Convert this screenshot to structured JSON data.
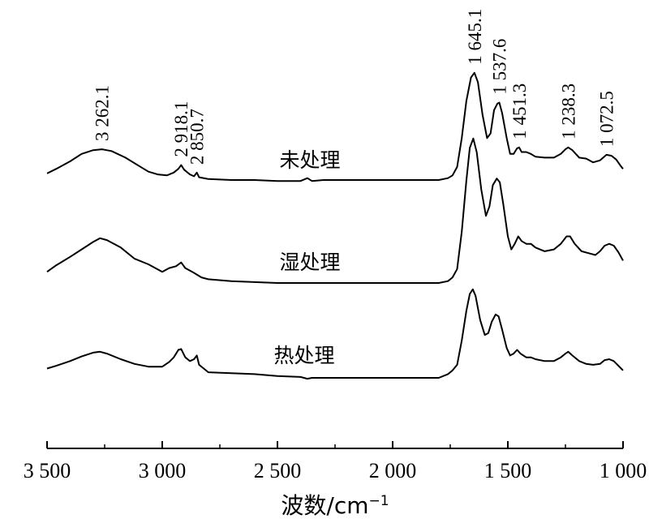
{
  "chart_data": {
    "type": "line",
    "title": "",
    "xlabel": "波数/cm",
    "xlabel_sup": "−1",
    "ylabel": "",
    "xlim": [
      3500,
      1000
    ],
    "x_reversed": true,
    "y_axis_visible": false,
    "grid": false,
    "x_ticks": [
      3500,
      3000,
      2500,
      2000,
      1500,
      1000
    ],
    "x_tick_labels": [
      "3 500",
      "3 000",
      "2 500",
      "2 000",
      "1 500",
      "1 000"
    ],
    "series": [
      {
        "name": "未处理",
        "points": [
          [
            3500,
            0.07
          ],
          [
            3460,
            0.12
          ],
          [
            3400,
            0.2
          ],
          [
            3350,
            0.28
          ],
          [
            3300,
            0.32
          ],
          [
            3262,
            0.33
          ],
          [
            3220,
            0.31
          ],
          [
            3160,
            0.24
          ],
          [
            3100,
            0.15
          ],
          [
            3060,
            0.09
          ],
          [
            3020,
            0.06
          ],
          [
            2980,
            0.05
          ],
          [
            2950,
            0.08
          ],
          [
            2930,
            0.12
          ],
          [
            2918,
            0.16
          ],
          [
            2905,
            0.11
          ],
          [
            2880,
            0.06
          ],
          [
            2862,
            0.04
          ],
          [
            2850,
            0.08
          ],
          [
            2840,
            0.03
          ],
          [
            2800,
            0.01
          ],
          [
            2700,
            0.0
          ],
          [
            2600,
            0.0
          ],
          [
            2500,
            -0.01
          ],
          [
            2400,
            -0.01
          ],
          [
            2370,
            0.02
          ],
          [
            2350,
            -0.01
          ],
          [
            2300,
            0.0
          ],
          [
            2200,
            0.0
          ],
          [
            2100,
            0.0
          ],
          [
            2000,
            0.0
          ],
          [
            1900,
            0.0
          ],
          [
            1800,
            0.0
          ],
          [
            1760,
            0.02
          ],
          [
            1740,
            0.05
          ],
          [
            1720,
            0.14
          ],
          [
            1700,
            0.45
          ],
          [
            1680,
            0.85
          ],
          [
            1660,
            1.1
          ],
          [
            1645,
            1.15
          ],
          [
            1630,
            1.05
          ],
          [
            1610,
            0.7
          ],
          [
            1590,
            0.45
          ],
          [
            1575,
            0.5
          ],
          [
            1560,
            0.75
          ],
          [
            1545,
            0.82
          ],
          [
            1537,
            0.83
          ],
          [
            1525,
            0.72
          ],
          [
            1505,
            0.45
          ],
          [
            1490,
            0.28
          ],
          [
            1475,
            0.28
          ],
          [
            1460,
            0.34
          ],
          [
            1451,
            0.35
          ],
          [
            1440,
            0.3
          ],
          [
            1420,
            0.3
          ],
          [
            1400,
            0.28
          ],
          [
            1380,
            0.25
          ],
          [
            1340,
            0.24
          ],
          [
            1300,
            0.24
          ],
          [
            1270,
            0.28
          ],
          [
            1250,
            0.33
          ],
          [
            1238,
            0.35
          ],
          [
            1220,
            0.32
          ],
          [
            1190,
            0.24
          ],
          [
            1160,
            0.23
          ],
          [
            1130,
            0.19
          ],
          [
            1100,
            0.21
          ],
          [
            1072,
            0.27
          ],
          [
            1050,
            0.26
          ],
          [
            1030,
            0.22
          ],
          [
            1010,
            0.15
          ],
          [
            1000,
            0.12
          ]
        ]
      },
      {
        "name": "湿处理",
        "points": [
          [
            3500,
            0.12
          ],
          [
            3460,
            0.19
          ],
          [
            3400,
            0.28
          ],
          [
            3350,
            0.36
          ],
          [
            3300,
            0.44
          ],
          [
            3270,
            0.48
          ],
          [
            3240,
            0.46
          ],
          [
            3180,
            0.38
          ],
          [
            3120,
            0.26
          ],
          [
            3060,
            0.2
          ],
          [
            3000,
            0.12
          ],
          [
            2970,
            0.16
          ],
          [
            2940,
            0.18
          ],
          [
            2918,
            0.22
          ],
          [
            2900,
            0.16
          ],
          [
            2870,
            0.12
          ],
          [
            2850,
            0.09
          ],
          [
            2830,
            0.06
          ],
          [
            2800,
            0.04
          ],
          [
            2700,
            0.02
          ],
          [
            2600,
            0.01
          ],
          [
            2500,
            0.0
          ],
          [
            2400,
            0.0
          ],
          [
            2300,
            0.0
          ],
          [
            2200,
            0.0
          ],
          [
            2100,
            0.0
          ],
          [
            2000,
            0.0
          ],
          [
            1900,
            0.0
          ],
          [
            1800,
            0.0
          ],
          [
            1760,
            0.02
          ],
          [
            1740,
            0.06
          ],
          [
            1720,
            0.15
          ],
          [
            1700,
            0.55
          ],
          [
            1680,
            1.1
          ],
          [
            1665,
            1.45
          ],
          [
            1650,
            1.55
          ],
          [
            1635,
            1.4
          ],
          [
            1615,
            1.0
          ],
          [
            1595,
            0.72
          ],
          [
            1580,
            0.82
          ],
          [
            1565,
            1.05
          ],
          [
            1548,
            1.12
          ],
          [
            1535,
            1.08
          ],
          [
            1520,
            0.85
          ],
          [
            1500,
            0.5
          ],
          [
            1485,
            0.36
          ],
          [
            1470,
            0.42
          ],
          [
            1455,
            0.5
          ],
          [
            1440,
            0.45
          ],
          [
            1420,
            0.42
          ],
          [
            1400,
            0.42
          ],
          [
            1380,
            0.38
          ],
          [
            1340,
            0.34
          ],
          [
            1300,
            0.36
          ],
          [
            1270,
            0.42
          ],
          [
            1245,
            0.5
          ],
          [
            1230,
            0.5
          ],
          [
            1210,
            0.42
          ],
          [
            1180,
            0.34
          ],
          [
            1150,
            0.32
          ],
          [
            1120,
            0.3
          ],
          [
            1100,
            0.34
          ],
          [
            1080,
            0.4
          ],
          [
            1060,
            0.42
          ],
          [
            1040,
            0.4
          ],
          [
            1020,
            0.33
          ],
          [
            1000,
            0.24
          ]
        ]
      },
      {
        "name": "热处理",
        "points": [
          [
            3500,
            0.1
          ],
          [
            3460,
            0.13
          ],
          [
            3400,
            0.18
          ],
          [
            3350,
            0.23
          ],
          [
            3300,
            0.27
          ],
          [
            3270,
            0.28
          ],
          [
            3240,
            0.26
          ],
          [
            3180,
            0.2
          ],
          [
            3120,
            0.15
          ],
          [
            3060,
            0.12
          ],
          [
            3000,
            0.12
          ],
          [
            2970,
            0.17
          ],
          [
            2950,
            0.22
          ],
          [
            2930,
            0.3
          ],
          [
            2918,
            0.31
          ],
          [
            2900,
            0.22
          ],
          [
            2880,
            0.18
          ],
          [
            2862,
            0.2
          ],
          [
            2850,
            0.24
          ],
          [
            2840,
            0.14
          ],
          [
            2800,
            0.06
          ],
          [
            2700,
            0.05
          ],
          [
            2600,
            0.04
          ],
          [
            2500,
            0.02
          ],
          [
            2400,
            0.01
          ],
          [
            2370,
            -0.01
          ],
          [
            2350,
            0.0
          ],
          [
            2300,
            0.0
          ],
          [
            2200,
            0.0
          ],
          [
            2100,
            0.0
          ],
          [
            2000,
            0.0
          ],
          [
            1900,
            0.0
          ],
          [
            1800,
            0.0
          ],
          [
            1760,
            0.04
          ],
          [
            1740,
            0.08
          ],
          [
            1720,
            0.14
          ],
          [
            1700,
            0.4
          ],
          [
            1680,
            0.72
          ],
          [
            1665,
            0.9
          ],
          [
            1652,
            0.95
          ],
          [
            1640,
            0.88
          ],
          [
            1620,
            0.62
          ],
          [
            1600,
            0.46
          ],
          [
            1585,
            0.48
          ],
          [
            1570,
            0.6
          ],
          [
            1553,
            0.68
          ],
          [
            1540,
            0.66
          ],
          [
            1525,
            0.52
          ],
          [
            1505,
            0.32
          ],
          [
            1490,
            0.24
          ],
          [
            1475,
            0.26
          ],
          [
            1460,
            0.3
          ],
          [
            1445,
            0.26
          ],
          [
            1420,
            0.22
          ],
          [
            1400,
            0.22
          ],
          [
            1380,
            0.2
          ],
          [
            1340,
            0.18
          ],
          [
            1300,
            0.18
          ],
          [
            1270,
            0.22
          ],
          [
            1250,
            0.26
          ],
          [
            1238,
            0.28
          ],
          [
            1220,
            0.24
          ],
          [
            1190,
            0.18
          ],
          [
            1160,
            0.15
          ],
          [
            1130,
            0.14
          ],
          [
            1100,
            0.15
          ],
          [
            1080,
            0.19
          ],
          [
            1060,
            0.2
          ],
          [
            1040,
            0.18
          ],
          [
            1020,
            0.13
          ],
          [
            1000,
            0.08
          ]
        ]
      }
    ],
    "annotations": [
      {
        "text": "3 262.1",
        "x": 3262.1,
        "series": 0
      },
      {
        "text": "2 918.1",
        "x": 2918.1,
        "series": 0
      },
      {
        "text": "2 850.7",
        "x": 2850.7,
        "series": 0
      },
      {
        "text": "1 645.1",
        "x": 1645.1,
        "series": 0
      },
      {
        "text": "1 537.6",
        "x": 1537.6,
        "series": 0
      },
      {
        "text": "1 451.3",
        "x": 1451.3,
        "series": 0
      },
      {
        "text": "1 238.3",
        "x": 1238.3,
        "series": 0
      },
      {
        "text": "1 072.5",
        "x": 1072.5,
        "series": 0
      }
    ]
  }
}
